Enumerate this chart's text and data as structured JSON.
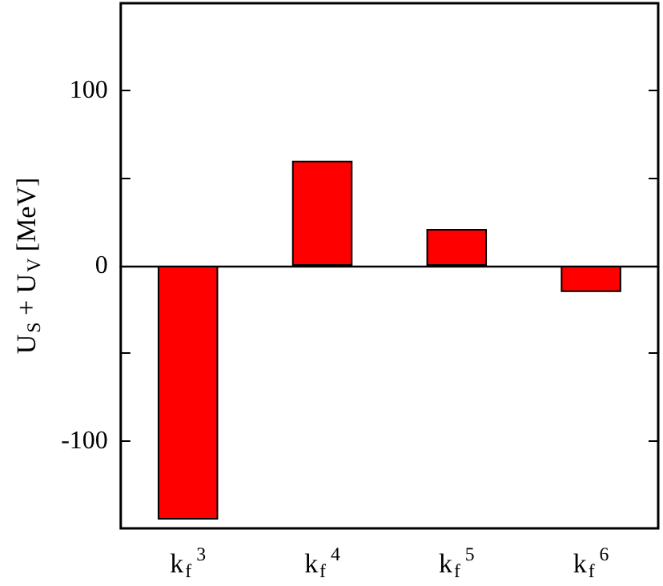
{
  "chart_data": {
    "type": "bar",
    "ylabel": "U$_{S}$ + U$_{V}$ [MeV]",
    "categories": [
      "k$_{f}$$^{3}$",
      "k$_{f}$$^{4}$",
      "k$_{f}$$^{5}$",
      "k$_{f}$$^{6}$"
    ],
    "values": [
      -145,
      60,
      21,
      -15
    ],
    "color": "#ff0000",
    "ylim": [
      -150,
      150
    ],
    "yticks": [
      -100,
      {
        "value": -50,
        "label": null
      },
      0,
      {
        "value": 50,
        "label": null
      },
      100
    ]
  }
}
